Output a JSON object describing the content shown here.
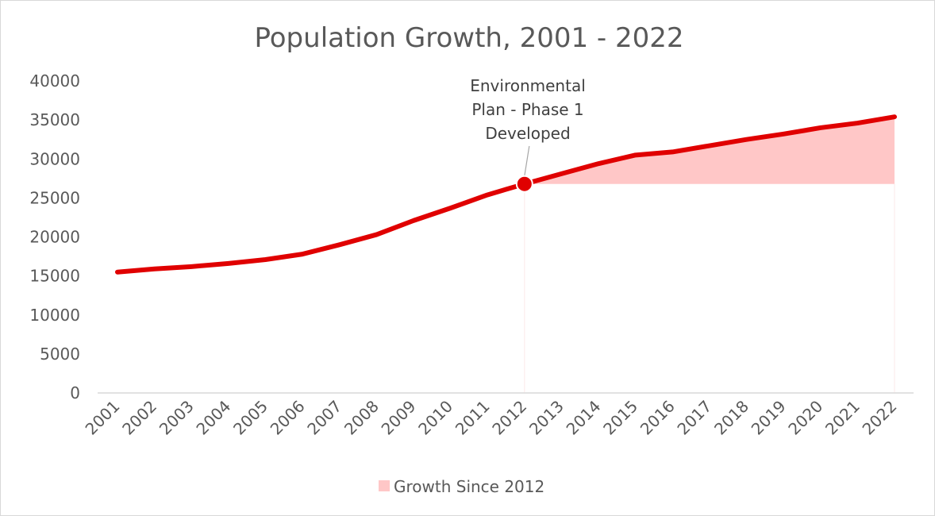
{
  "chart_data": {
    "type": "line",
    "title": "Population Growth, 2001 - 2022",
    "xlabel": "",
    "ylabel": "",
    "ylim": [
      0,
      40000
    ],
    "yticks": [
      "0",
      "5000",
      "10000",
      "15000",
      "20000",
      "25000",
      "30000",
      "35000",
      "40000"
    ],
    "categories": [
      "2001",
      "2002",
      "2003",
      "2004",
      "2005",
      "2006",
      "2007",
      "2008",
      "2009",
      "2010",
      "2011",
      "2012",
      "2013",
      "2014",
      "2015",
      "2016",
      "2017",
      "2018",
      "2019",
      "2020",
      "2021",
      "2022"
    ],
    "series": [
      {
        "values": [
          15500,
          15900,
          16200,
          16600,
          17100,
          17800,
          19000,
          20300,
          22100,
          23700,
          25400,
          26800,
          28100,
          29400,
          30500,
          30900,
          31700,
          32500,
          33200,
          34000,
          34600,
          35400
        ],
        "color": "#e00000"
      },
      {
        "name": "Growth Since 2012",
        "type": "area",
        "baseline": 26800,
        "start_category": "2012",
        "color": "#ffc7c7"
      }
    ],
    "annotation": {
      "category": "2012",
      "value": 26800,
      "lines": [
        "Environmental",
        "Plan - Phase 1",
        "Developed"
      ]
    },
    "grid": false,
    "legend": "bottom"
  }
}
